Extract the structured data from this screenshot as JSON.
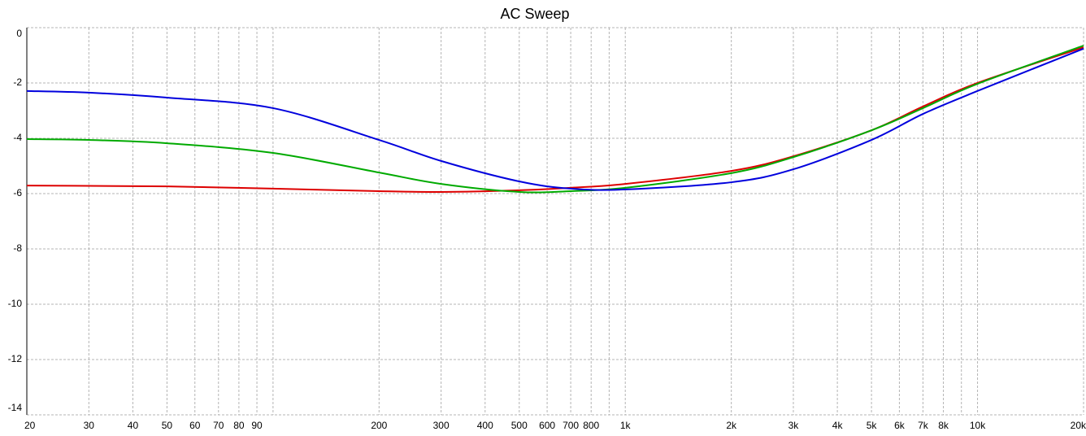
{
  "chart_data": {
    "type": "line",
    "title": "AC Sweep",
    "xscale": "log",
    "grid": true,
    "xlim": [
      20,
      20000
    ],
    "ylim": [
      -14,
      0
    ],
    "yticks": [
      0,
      -2,
      -4,
      -6,
      -8,
      -10,
      -12,
      -14
    ],
    "xticks": [
      20,
      30,
      40,
      50,
      60,
      70,
      80,
      90,
      200,
      300,
      400,
      500,
      600,
      700,
      800,
      {
        "value": 1000,
        "label": "1k"
      },
      {
        "value": 2000,
        "label": "2k"
      },
      {
        "value": 3000,
        "label": "3k"
      },
      {
        "value": 4000,
        "label": "4k"
      },
      {
        "value": 5000,
        "label": "5k"
      },
      {
        "value": 6000,
        "label": "6k"
      },
      {
        "value": 7000,
        "label": "7k"
      },
      {
        "value": 8000,
        "label": "8k"
      },
      {
        "value": 10000,
        "label": "10k"
      },
      {
        "value": 20000,
        "label": "20k"
      }
    ],
    "xminor": [
      100,
      900,
      9000
    ],
    "x": [
      20,
      30,
      50,
      100,
      200,
      300,
      500,
      700,
      1000,
      2000,
      3000,
      5000,
      7000,
      10000,
      20000
    ],
    "series": [
      {
        "color": "#dd0000",
        "values": [
          -5.71,
          -5.72,
          -5.74,
          -5.82,
          -5.91,
          -5.94,
          -5.88,
          -5.79,
          -5.65,
          -5.18,
          -4.65,
          -3.71,
          -2.85,
          -2.0,
          -0.71
        ]
      },
      {
        "color": "#00aa00",
        "values": [
          -4.03,
          -4.06,
          -4.18,
          -4.53,
          -5.24,
          -5.65,
          -5.94,
          -5.91,
          -5.79,
          -5.26,
          -4.68,
          -3.71,
          -2.91,
          -2.03,
          -0.65
        ]
      },
      {
        "color": "#0000dd",
        "values": [
          -2.29,
          -2.35,
          -2.53,
          -2.91,
          -4.06,
          -4.82,
          -5.56,
          -5.82,
          -5.85,
          -5.59,
          -5.12,
          -4.06,
          -3.12,
          -2.29,
          -0.76
        ]
      }
    ]
  }
}
